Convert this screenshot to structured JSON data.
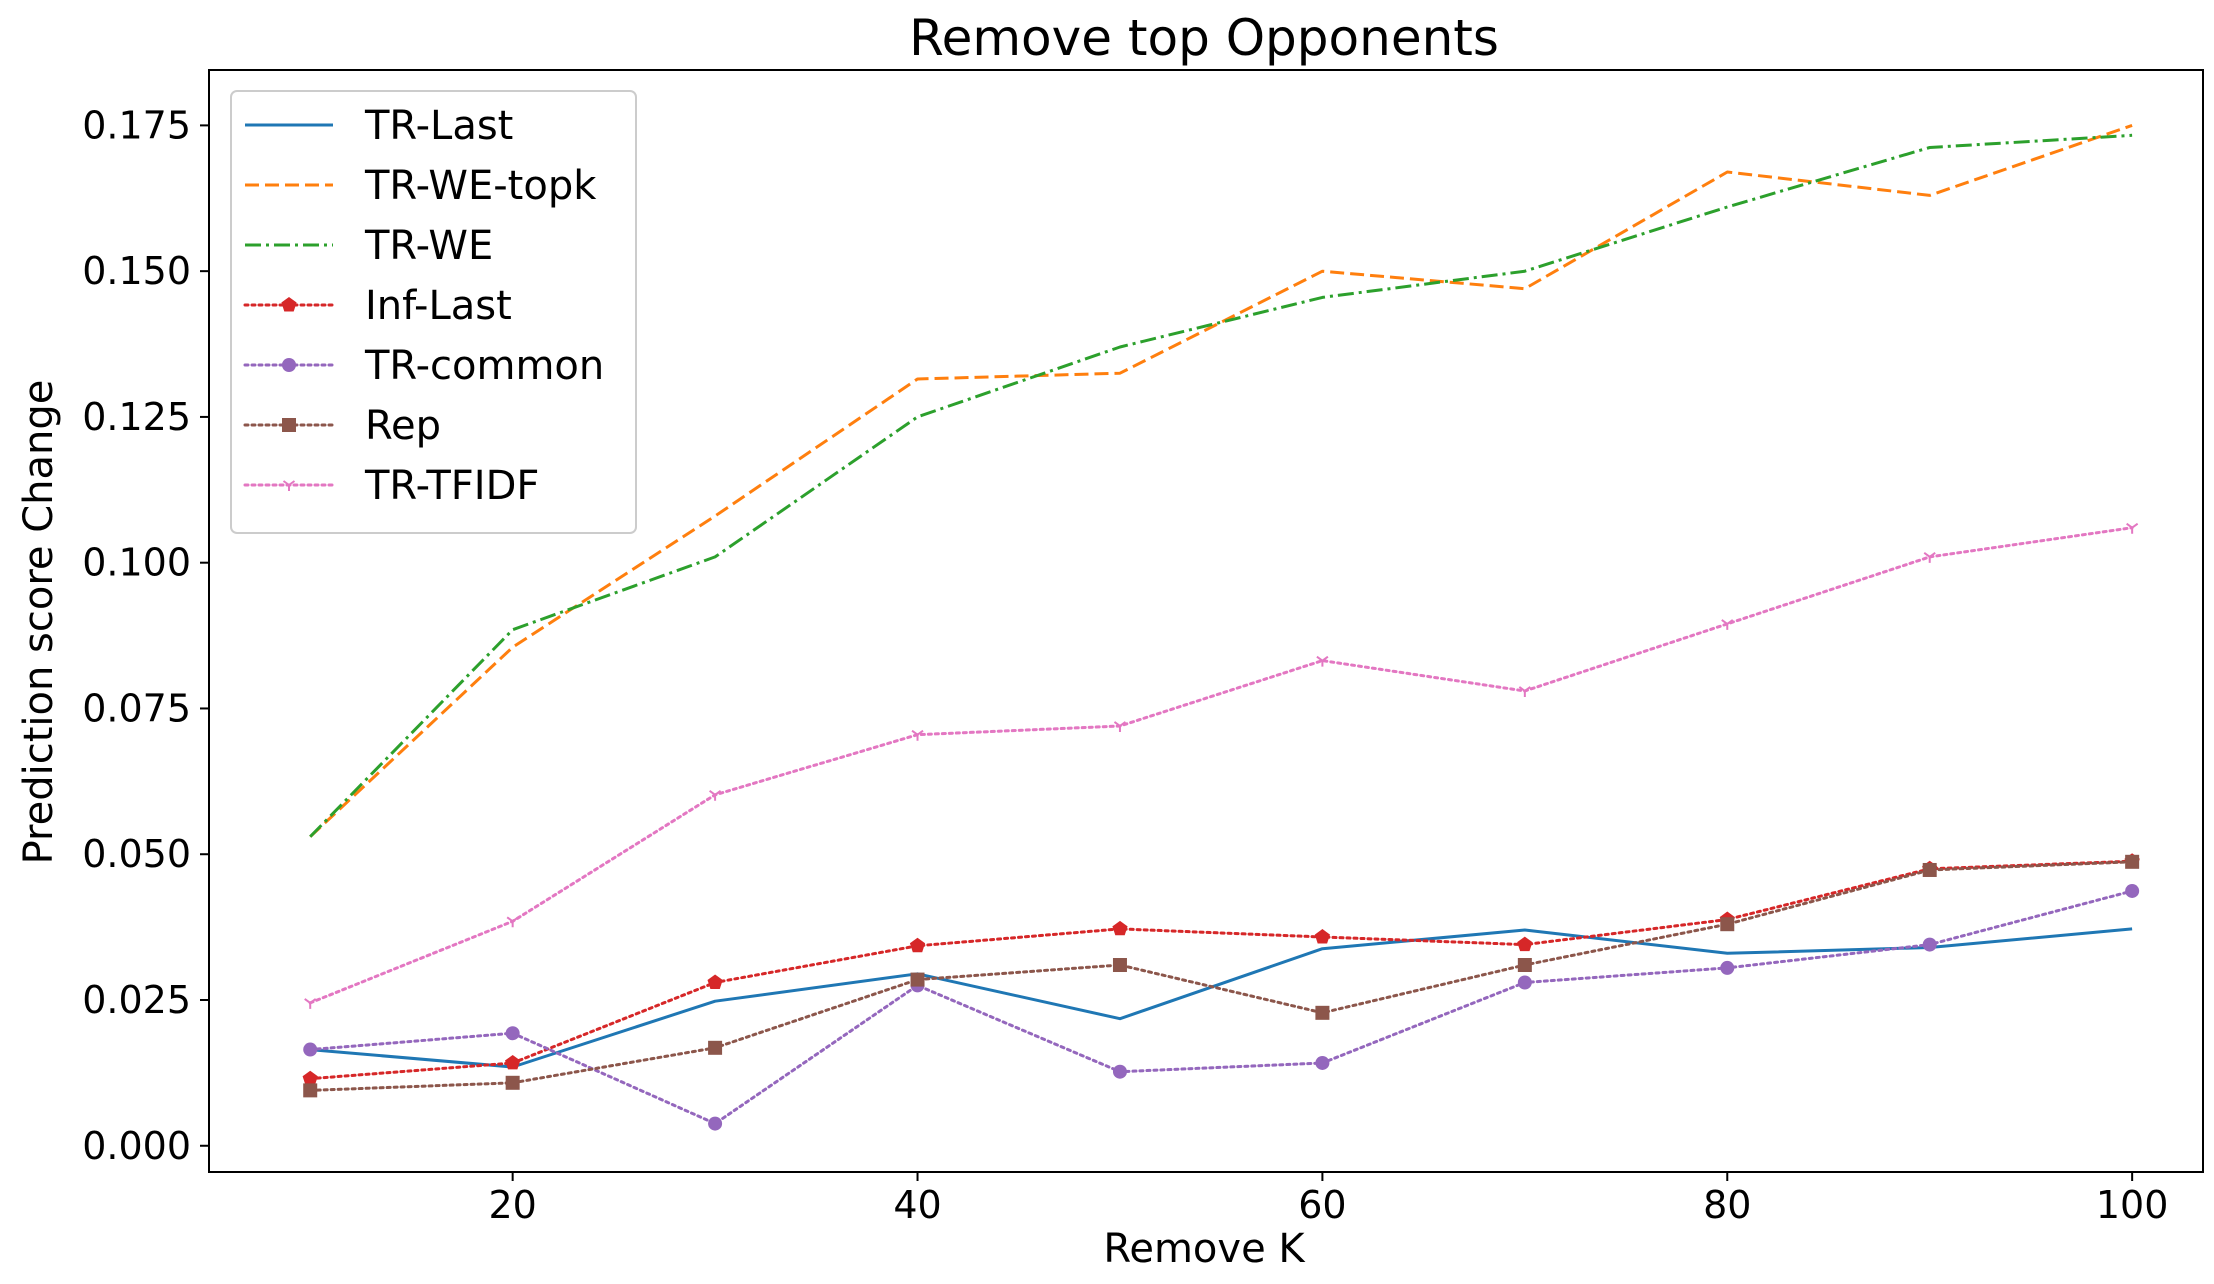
{
  "chart_data": {
    "type": "line",
    "title": "Remove top Opponents",
    "xlabel": "Remove K",
    "ylabel": "Prediction score Change",
    "x": [
      10,
      20,
      30,
      40,
      50,
      60,
      70,
      80,
      90,
      100
    ],
    "xlim": [
      5,
      103.5
    ],
    "ylim": [
      -0.0045,
      0.1845
    ],
    "xticks": [
      20,
      40,
      60,
      80,
      100
    ],
    "xtick_labels": [
      "20",
      "40",
      "60",
      "80",
      "100"
    ],
    "yticks": [
      0.0,
      0.025,
      0.05,
      0.075,
      0.1,
      0.125,
      0.15,
      0.175
    ],
    "ytick_labels": [
      "0.000",
      "0.025",
      "0.050",
      "0.075",
      "0.100",
      "0.125",
      "0.150",
      "0.175"
    ],
    "grid": false,
    "legend_position": "top-left",
    "series": [
      {
        "name": "TR-Last",
        "color": "#1f77b4",
        "linestyle": "solid",
        "marker": "none",
        "values": [
          0.0165,
          0.0135,
          0.0248,
          0.0295,
          0.0218,
          0.0338,
          0.037,
          0.033,
          0.034,
          0.0372
        ]
      },
      {
        "name": "TR-WE-topk",
        "color": "#ff7f0e",
        "linestyle": "dashed",
        "marker": "none",
        "values": [
          0.053,
          0.0855,
          0.108,
          0.1315,
          0.1325,
          0.15,
          0.147,
          0.167,
          0.163,
          0.175
        ]
      },
      {
        "name": "TR-WE",
        "color": "#2ca02c",
        "linestyle": "dashdot",
        "marker": "none",
        "values": [
          0.053,
          0.0885,
          0.101,
          0.125,
          0.137,
          0.1455,
          0.15,
          0.161,
          0.1712,
          0.1733
        ]
      },
      {
        "name": "Inf-Last",
        "color": "#d62728",
        "linestyle": "dotted",
        "marker": "pentagon",
        "values": [
          0.0115,
          0.0142,
          0.028,
          0.0343,
          0.0372,
          0.0358,
          0.0345,
          0.0388,
          0.0475,
          0.0488
        ]
      },
      {
        "name": "TR-common",
        "color": "#9467bd",
        "linestyle": "dotted",
        "marker": "circle",
        "values": [
          0.0165,
          0.0193,
          0.0038,
          0.0275,
          0.0127,
          0.0142,
          0.028,
          0.0305,
          0.0345,
          0.0437
        ]
      },
      {
        "name": "Rep",
        "color": "#8c564b",
        "linestyle": "dotted",
        "marker": "square",
        "values": [
          0.0095,
          0.0108,
          0.0168,
          0.0285,
          0.031,
          0.0228,
          0.031,
          0.038,
          0.0473,
          0.0487
        ]
      },
      {
        "name": "TR-TFIDF",
        "color": "#e377c2",
        "linestyle": "dotted",
        "marker": "tri_down",
        "values": [
          0.0245,
          0.0385,
          0.0602,
          0.0705,
          0.072,
          0.0832,
          0.078,
          0.0895,
          0.101,
          0.106
        ]
      }
    ]
  }
}
